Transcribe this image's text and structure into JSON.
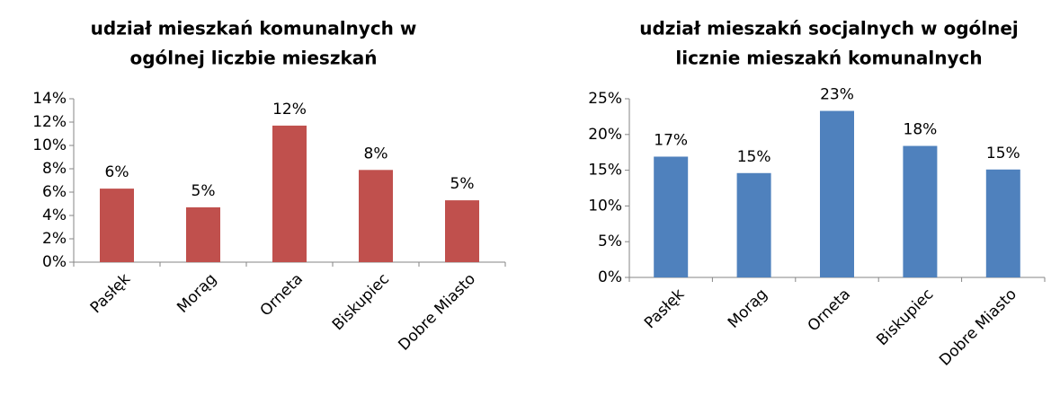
{
  "chart_data": [
    {
      "type": "bar",
      "title": [
        "udział mieszkań komunalnych w",
        "ogólnej liczbie mieszkań"
      ],
      "categories": [
        "Pasłęk",
        "Morąg",
        "Orneta",
        "Biskupiec",
        "Dobre Miasto"
      ],
      "values": [
        6.3,
        4.7,
        11.7,
        7.9,
        5.3
      ],
      "value_labels": [
        "6%",
        "5%",
        "12%",
        "8%",
        "5%"
      ],
      "color": "#c0504d",
      "ylim": [
        0,
        14
      ],
      "yticks": [
        {
          "value": 0,
          "label": "0%"
        },
        {
          "value": 2,
          "label": "2%"
        },
        {
          "value": 4,
          "label": "4%"
        },
        {
          "value": 6,
          "label": "6%"
        },
        {
          "value": 8,
          "label": "8%"
        },
        {
          "value": 10,
          "label": "10%"
        },
        {
          "value": 12,
          "label": "12%"
        },
        {
          "value": 14,
          "label": "14%"
        }
      ],
      "grid": false
    },
    {
      "type": "bar",
      "title": [
        "udział mieszakń socjalnych w ogólnej",
        "licznie mieszakń komunalnych"
      ],
      "categories": [
        "Pasłęk",
        "Morąg",
        "Orneta",
        "Biskupiec",
        "Dobre Miasto"
      ],
      "values": [
        16.9,
        14.6,
        23.3,
        18.4,
        15.1
      ],
      "value_labels": [
        "17%",
        "15%",
        "23%",
        "18%",
        "15%"
      ],
      "color": "#4f81bd",
      "ylim": [
        0,
        25
      ],
      "yticks": [
        {
          "value": 0,
          "label": "0%"
        },
        {
          "value": 5,
          "label": "5%"
        },
        {
          "value": 10,
          "label": "10%"
        },
        {
          "value": 15,
          "label": "15%"
        },
        {
          "value": 20,
          "label": "20%"
        },
        {
          "value": 25,
          "label": "25%"
        }
      ],
      "grid": false
    }
  ]
}
